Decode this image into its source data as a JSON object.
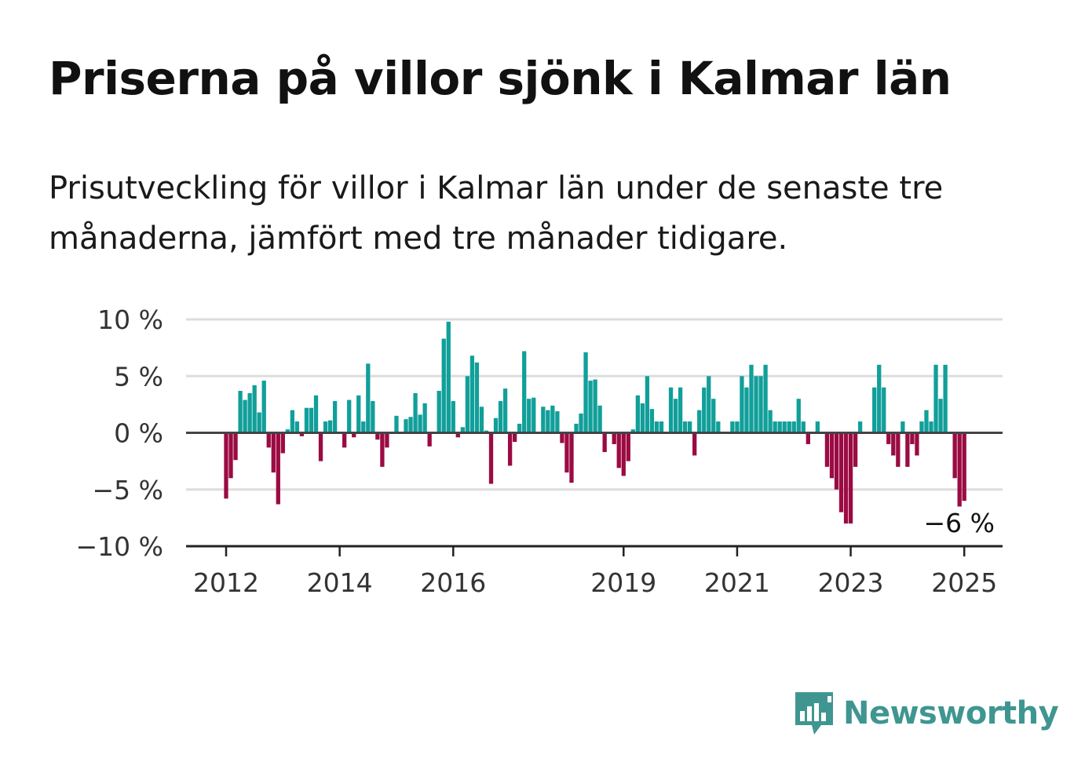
{
  "header": {
    "title": "Priserna på villor sjönk i Kalmar län",
    "subtitle": "Prisutveckling för villor i Kalmar län under de senaste tre månaderna, jämfört med tre månader tidigare."
  },
  "brand": {
    "name": "Newsworthy",
    "color": "#3f9691",
    "icon": "bar-chart-speech-bubble-icon"
  },
  "colors": {
    "positive": "#119f9a",
    "negative": "#9b0b43",
    "grid": "#dddddd",
    "axis": "#333333"
  },
  "chart_data": {
    "type": "bar",
    "ylabel": "",
    "xlabel": "",
    "ylim": [
      -10,
      10
    ],
    "y_ticks": [
      10,
      5,
      0,
      -5,
      -10
    ],
    "y_tick_labels": [
      "10 %",
      "5 %",
      "0 %",
      "−5 %",
      "−10 %"
    ],
    "x_ticks": [
      {
        "label": "2012",
        "index": 0
      },
      {
        "label": "2014",
        "index": 24
      },
      {
        "label": "2016",
        "index": 48
      },
      {
        "label": "2019",
        "index": 84
      },
      {
        "label": "2021",
        "index": 108
      },
      {
        "label": "2023",
        "index": 132
      },
      {
        "label": "2025",
        "index": 156
      }
    ],
    "start": "2012-01",
    "frequency": "monthly",
    "annotation": {
      "text": "−6 %",
      "index": 157
    },
    "values": [
      -5.8,
      -4.0,
      -2.4,
      3.7,
      2.9,
      3.5,
      4.2,
      1.8,
      4.6,
      -1.3,
      -3.5,
      -6.3,
      -1.8,
      0.3,
      2.0,
      1.0,
      -0.3,
      2.2,
      2.2,
      3.3,
      -2.5,
      1.0,
      1.1,
      2.8,
      0.0,
      -1.3,
      2.9,
      -0.4,
      3.3,
      1.0,
      6.1,
      2.8,
      -0.6,
      -3.0,
      -1.3,
      0.1,
      1.5,
      0.0,
      1.2,
      1.4,
      3.5,
      1.6,
      2.6,
      -1.2,
      0.0,
      3.7,
      8.3,
      9.8,
      2.8,
      -0.4,
      0.5,
      5.0,
      6.8,
      6.2,
      2.3,
      0.2,
      -4.5,
      1.3,
      2.8,
      3.9,
      -2.9,
      -0.8,
      0.8,
      7.2,
      3.0,
      3.1,
      0.0,
      2.3,
      2.0,
      2.4,
      1.9,
      -0.9,
      -3.5,
      -4.4,
      0.8,
      1.7,
      7.1,
      4.6,
      4.7,
      2.4,
      -1.7,
      0.0,
      -1.0,
      -3.1,
      -3.8,
      -2.5,
      0.3,
      3.3,
      2.6,
      5.0,
      2.1,
      1.0,
      1.0,
      0.0,
      4.0,
      3.0,
      4.0,
      1.0,
      1.0,
      -2.0,
      2.0,
      4.0,
      5.0,
      3.0,
      1.0,
      0.0,
      0.0,
      1.0,
      1.0,
      5.0,
      4.0,
      6.0,
      5.0,
      5.0,
      6.0,
      2.0,
      1.0,
      1.0,
      1.0,
      1.0,
      1.0,
      3.0,
      1.0,
      -1.0,
      0.0,
      1.0,
      0.0,
      -3.0,
      -4.0,
      -5.0,
      -7.0,
      -8.0,
      -8.0,
      -3.0,
      1.0,
      0.0,
      0.0,
      4.0,
      6.0,
      4.0,
      -1.0,
      -2.0,
      -3.0,
      1.0,
      -3.0,
      -1.0,
      -2.0,
      1.0,
      2.0,
      1.0,
      6.0,
      3.0,
      6.0,
      0.0,
      -4.0,
      -6.5,
      -6.0
    ]
  }
}
